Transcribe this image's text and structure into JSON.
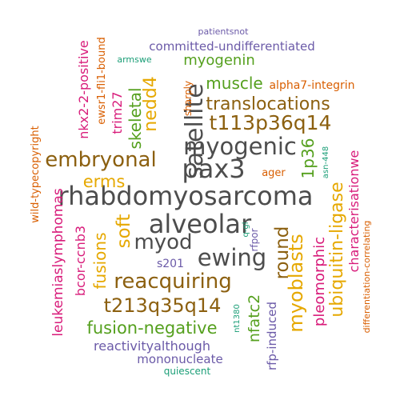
{
  "words": [
    {
      "text": "rhabdomyosarcoma",
      "color": "#4d4d4d"
    },
    {
      "text": "alveolar",
      "color": "#4d4d4d"
    },
    {
      "text": "pax3",
      "color": "#4d4d4d"
    },
    {
      "text": "myogenic",
      "color": "#4d4d4d"
    },
    {
      "text": "satellite",
      "color": "#4d4d4d"
    },
    {
      "text": "ewing",
      "color": "#4d4d4d"
    },
    {
      "text": "myod",
      "color": "#4d4d4d"
    },
    {
      "text": "t113p36q14",
      "color": "#8c6010"
    },
    {
      "text": "translocations",
      "color": "#8c6010"
    },
    {
      "text": "embryonal",
      "color": "#8c6010"
    },
    {
      "text": "reacquiring",
      "color": "#8c6010"
    },
    {
      "text": "t213q35q14",
      "color": "#8c6010"
    },
    {
      "text": "round",
      "color": "#8c6010"
    },
    {
      "text": "myoblasts",
      "color": "#e6a800"
    },
    {
      "text": "ubiquitin-ligase",
      "color": "#e6a800"
    },
    {
      "text": "soft",
      "color": "#e6a800"
    },
    {
      "text": "erms",
      "color": "#e6a800"
    },
    {
      "text": "nedd4",
      "color": "#e6a800"
    },
    {
      "text": "fusions",
      "color": "#e6a800"
    },
    {
      "text": "fusion-negative",
      "color": "#55a01e"
    },
    {
      "text": "muscle",
      "color": "#55a01e"
    },
    {
      "text": "myogenin",
      "color": "#55a01e"
    },
    {
      "text": "skeletal",
      "color": "#55a01e"
    },
    {
      "text": "1p36",
      "color": "#55a01e"
    },
    {
      "text": "nfatc2",
      "color": "#55a01e"
    },
    {
      "text": "committed-undifferentiated",
      "color": "#6b5aa8"
    },
    {
      "text": "reactivityalthough",
      "color": "#6b5aa8"
    },
    {
      "text": "mononucleate",
      "color": "#6b5aa8"
    },
    {
      "text": "rfp-induced",
      "color": "#6b5aa8"
    },
    {
      "text": "s201",
      "color": "#6b5aa8"
    },
    {
      "text": "rfpor",
      "color": "#6b5aa8"
    },
    {
      "text": "patientsnot",
      "color": "#6b5aa8"
    },
    {
      "text": "leukemiaslymphomas",
      "color": "#d81b7a"
    },
    {
      "text": "bcor-ccnb3",
      "color": "#d81b7a"
    },
    {
      "text": "nkx2-2-positive",
      "color": "#d81b7a"
    },
    {
      "text": "trim27",
      "color": "#d81b7a"
    },
    {
      "text": "pleomorphic",
      "color": "#d81b7a"
    },
    {
      "text": "characterisationwe",
      "color": "#d81b7a"
    },
    {
      "text": "alpha7-integrin",
      "color": "#d95f02"
    },
    {
      "text": "ager",
      "color": "#d95f02"
    },
    {
      "text": "ewsr1-fli1-bound",
      "color": "#d95f02"
    },
    {
      "text": "sharply",
      "color": "#d95f02"
    },
    {
      "text": "wild-typecopyright",
      "color": "#d95f02"
    },
    {
      "text": "differentiation-correlating",
      "color": "#d95f02"
    },
    {
      "text": "armswe",
      "color": "#1b9e77"
    },
    {
      "text": "q-gl",
      "color": "#1b9e77"
    },
    {
      "text": "asn-448",
      "color": "#1b9e77"
    },
    {
      "text": "nt1380",
      "color": "#1b9e77"
    },
    {
      "text": "quiescent",
      "color": "#1b9e77"
    }
  ]
}
